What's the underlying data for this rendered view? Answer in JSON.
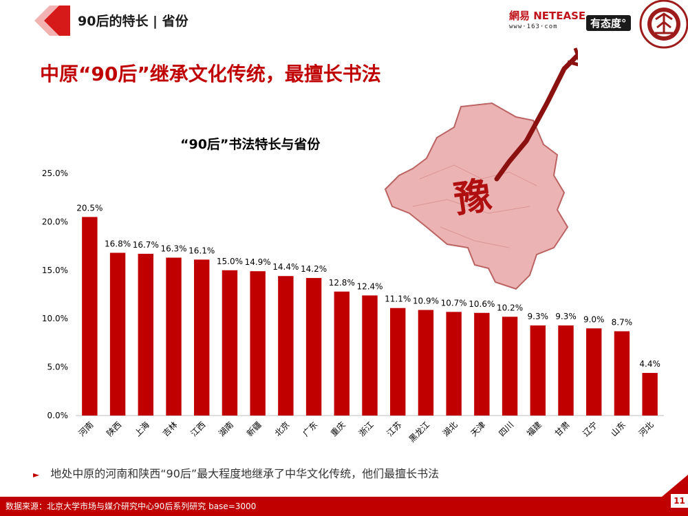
{
  "header": {
    "section_title": "90后的特长 | 省份",
    "logo_netease_text": "網易 NETEASE",
    "logo_netease_url": "www·163·com",
    "logo_youtaidu": "有态度°",
    "seal_label": "PEKING UNIVERSITY 1898"
  },
  "headline": "中原“90后”继承文化传统，最擅长书法",
  "map_character": "豫",
  "note": {
    "bullet": "►",
    "text": "地处中原的河南和陕西“90后”最大程度地继承了中华文化传统，他们最擅长书法"
  },
  "footer": {
    "source": "数据来源：北京大学市场与媒介研究中心90后系列研究 base=3000",
    "page_number": "11"
  },
  "colors": {
    "accent": "#c00000",
    "bar": "#c00000"
  },
  "chart_data": {
    "type": "bar",
    "title": "“90后”书法特长与省份",
    "categories": [
      "河南",
      "陕西",
      "上海",
      "吉林",
      "江西",
      "湖南",
      "新疆",
      "北京",
      "广东",
      "重庆",
      "浙江",
      "江苏",
      "黑龙江",
      "湖北",
      "天津",
      "四川",
      "福建",
      "甘肃",
      "辽宁",
      "山东",
      "河北"
    ],
    "values": [
      20.5,
      16.8,
      16.7,
      16.3,
      16.1,
      15.0,
      14.9,
      14.4,
      14.2,
      12.8,
      12.4,
      11.1,
      10.9,
      10.7,
      10.6,
      10.2,
      9.3,
      9.3,
      9.0,
      8.7,
      4.4
    ],
    "data_labels": [
      "20.5%",
      "16.8%",
      "16.7%",
      "16.3%",
      "16.1%",
      "15.0%",
      "14.9%",
      "14.4%",
      "14.2%",
      "12.8%",
      "12.4%",
      "11.1%",
      "10.9%",
      "10.7%",
      "10.6%",
      "10.2%",
      "9.3%",
      "9.3%",
      "9.0%",
      "8.7%",
      "4.4%"
    ],
    "ylim": [
      0,
      25
    ],
    "yticks": [
      "0.0%",
      "5.0%",
      "10.0%",
      "15.0%",
      "20.0%",
      "25.0%"
    ],
    "xlabel": "",
    "ylabel": "",
    "grid": false,
    "legend": "none"
  }
}
